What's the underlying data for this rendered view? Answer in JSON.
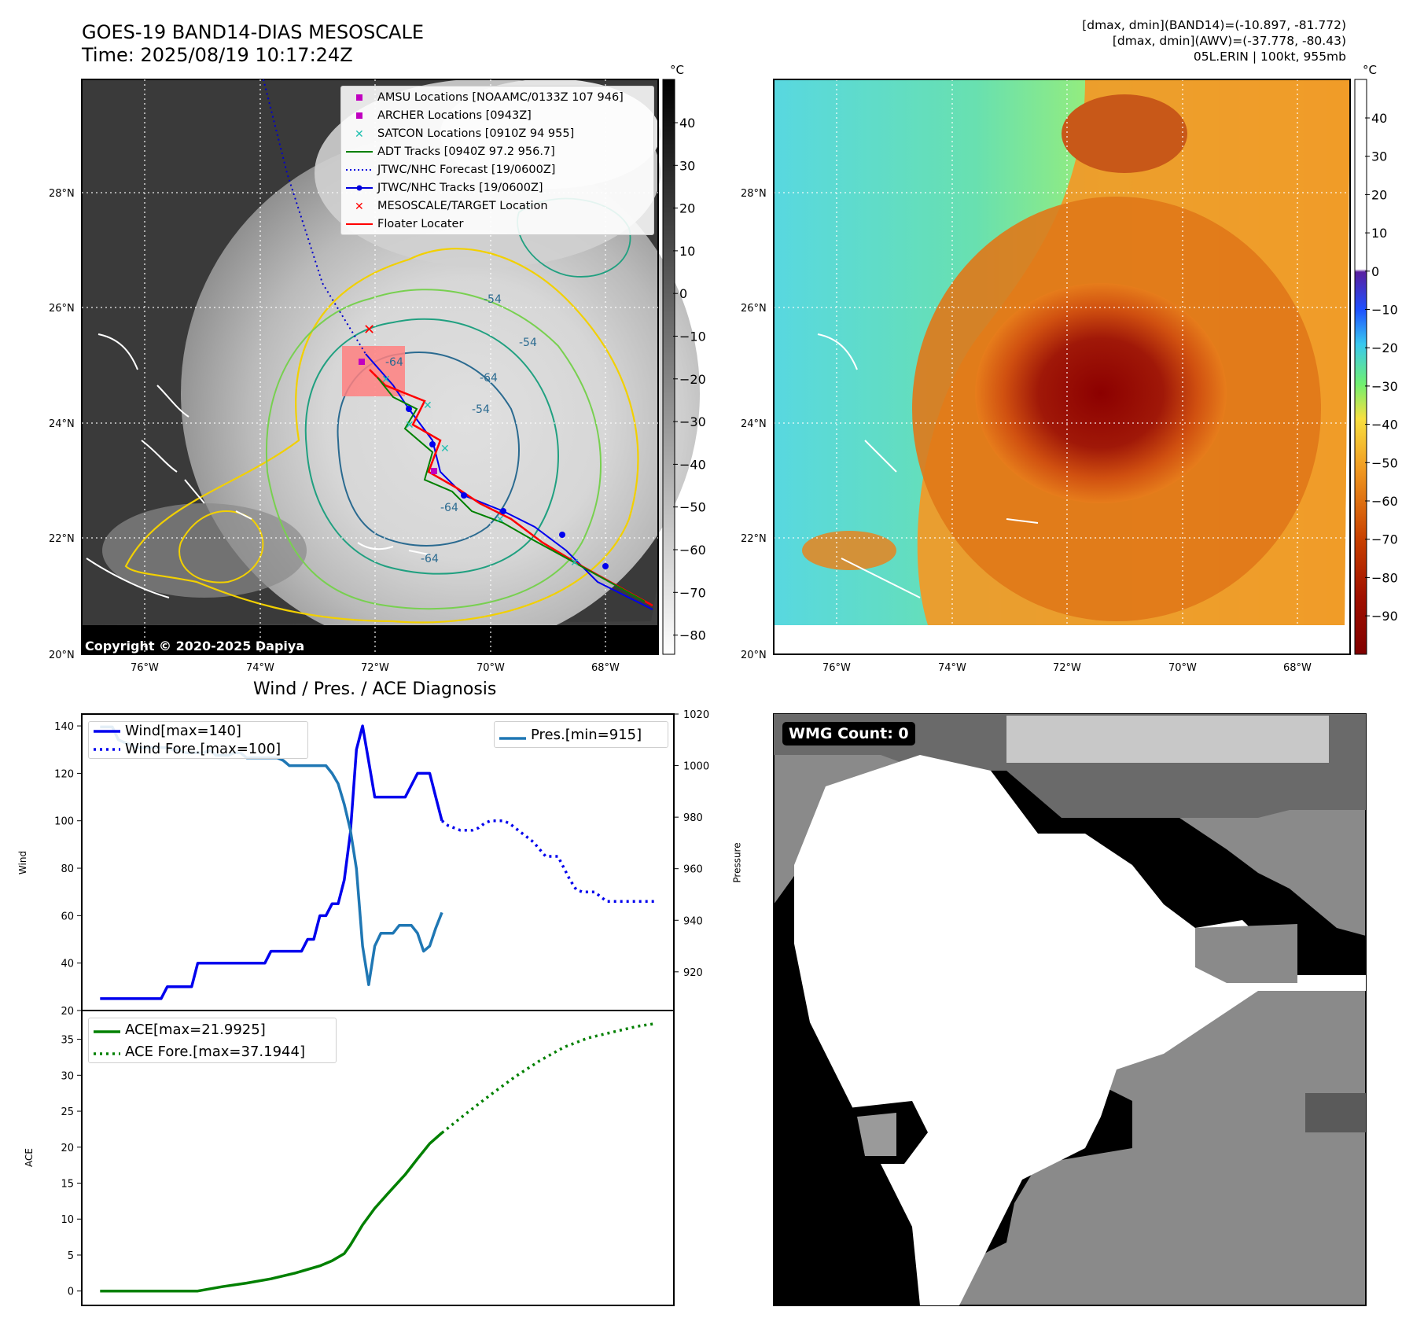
{
  "header": {
    "title_line1": "GOES-19 BAND14-DIAS MESOSCALE",
    "title_line2": "Time: 2025/08/19 10:17:24Z",
    "stats_line1": "[dmax, dmin](BAND14)=(-10.897, -81.772)",
    "stats_line2": "[dmax, dmin](AWV)=(-37.778, -80.43)",
    "stats_line3": "05L.ERIN | 100kt, 955mb"
  },
  "map_axes": {
    "lat_labels": [
      "20°N",
      "22°N",
      "24°N",
      "26°N",
      "28°N"
    ],
    "lon_labels": [
      "76°W",
      "74°W",
      "72°W",
      "70°W",
      "68°W"
    ]
  },
  "left_map": {
    "colorbar_unit": "°C",
    "colorbar_ticks": [
      "40",
      "30",
      "20",
      "10",
      "0",
      "−10",
      "−20",
      "−30",
      "−40",
      "−50",
      "−60",
      "−70",
      "−80"
    ],
    "contour_labels": [
      "-64",
      "-54",
      "-54",
      "-64",
      "-64",
      "-64",
      "-54"
    ],
    "copyright": "Copyright © 2020-2025 Dapiya",
    "legend": [
      {
        "label": "AMSU Locations [NOAAMC/0133Z 107 946]",
        "marker": "square",
        "color": "#c000c0"
      },
      {
        "label": "ARCHER Locations [0943Z]",
        "marker": "square",
        "color": "#c000c0"
      },
      {
        "label": "SATCON Locations [0910Z 94 955]",
        "marker": "x",
        "color": "#20c0b0"
      },
      {
        "label": "ADT Tracks [0940Z 97.2 956.7]",
        "marker": "line",
        "color": "#008000"
      },
      {
        "label": "JTWC/NHC Forecast [19/0600Z]",
        "marker": "dotted",
        "color": "#0000dd"
      },
      {
        "label": "JTWC/NHC Tracks [19/0600Z]",
        "marker": "line-dot",
        "color": "#0000dd"
      },
      {
        "label": "MESOSCALE/TARGET Location",
        "marker": "x",
        "color": "#ff0000"
      },
      {
        "label": "Floater Locater",
        "marker": "line",
        "color": "#ff0000"
      }
    ]
  },
  "right_map": {
    "colorbar_unit": "°C",
    "colorbar_ticks": [
      "40",
      "30",
      "20",
      "10",
      "0",
      "−10",
      "−20",
      "−30",
      "−40",
      "−50",
      "−60",
      "−70",
      "−80",
      "−90"
    ]
  },
  "chart_data": [
    {
      "type": "line",
      "title": "Wind / Pres. / ACE Diagnosis",
      "ylabel": "Wind",
      "ylabel_right": "Pressure",
      "ylim": [
        20,
        145
      ],
      "ylim_right": [
        905,
        1020
      ],
      "yticks": [
        "20",
        "40",
        "60",
        "80",
        "100",
        "120",
        "140"
      ],
      "yticks_right": [
        "920",
        "940",
        "960",
        "980",
        "1000",
        "1020"
      ],
      "legend_left": "upper-left",
      "legend_right": "upper-right",
      "series": [
        {
          "name": "Wind[max=140]",
          "axis": "left",
          "color": "#0000ee",
          "style": "solid",
          "x": [
            0,
            1,
            2,
            3,
            4,
            5,
            6,
            7,
            8,
            9,
            10,
            11,
            12,
            13,
            14,
            15,
            16,
            17,
            18,
            19,
            20,
            21,
            22,
            23,
            24,
            25,
            26,
            27,
            28,
            29,
            30,
            31,
            32,
            33,
            34,
            35,
            36,
            37,
            38,
            39,
            40,
            41,
            42,
            43,
            44,
            45,
            46,
            47,
            48,
            49,
            50,
            51,
            52,
            53,
            54,
            55,
            56,
            57,
            58,
            59,
            60
          ],
          "values": [
            25,
            25,
            25,
            25,
            25,
            25,
            25,
            25,
            25,
            25,
            25,
            30,
            30,
            30,
            30,
            30,
            40,
            40,
            40,
            40,
            40,
            40,
            40,
            40,
            40,
            40,
            40,
            40,
            45,
            45,
            45,
            45,
            45,
            45,
            50,
            50,
            60,
            60,
            65,
            65,
            75,
            95,
            130,
            140,
            125,
            110,
            110,
            110,
            110,
            110,
            110,
            115,
            120,
            120,
            120,
            110,
            100,
            null,
            null,
            null,
            null
          ]
        },
        {
          "name": "Wind Fore.[max=100]",
          "axis": "left",
          "color": "#0000ee",
          "style": "dotted",
          "x": [
            56,
            57,
            58,
            59,
            60,
            61,
            62,
            63,
            64,
            65,
            66,
            67,
            68,
            69,
            70,
            71,
            72,
            73,
            74,
            75,
            76,
            77,
            78,
            79,
            80,
            81,
            82,
            83,
            84,
            85,
            86,
            87,
            88,
            89,
            90,
            91
          ],
          "values": [
            100,
            98,
            97,
            96,
            96,
            96,
            97,
            99,
            100,
            100,
            100,
            99,
            97,
            95,
            93,
            91,
            88,
            85,
            85,
            85,
            80,
            75,
            71,
            70,
            70,
            70,
            68,
            66,
            66,
            66,
            66,
            66,
            66,
            66,
            66,
            66
          ]
        },
        {
          "name": "Pres.[min=915]",
          "axis": "right",
          "color": "#1f77b4",
          "style": "solid",
          "x": [
            0,
            1,
            2,
            3,
            4,
            5,
            6,
            7,
            8,
            9,
            10,
            11,
            12,
            13,
            14,
            15,
            16,
            17,
            18,
            19,
            20,
            21,
            22,
            23,
            24,
            25,
            26,
            27,
            28,
            29,
            30,
            31,
            32,
            33,
            34,
            35,
            36,
            37,
            38,
            39,
            40,
            41,
            42,
            43,
            44,
            45,
            46,
            47,
            48,
            49,
            50,
            51,
            52,
            53,
            54,
            55,
            56
          ],
          "values": [
            1015,
            1015,
            1015,
            1010,
            1009,
            1008,
            1007,
            1007,
            1007,
            1007,
            1007,
            1007,
            1006,
            1006,
            1005,
            1005,
            1005,
            1005,
            1006,
            1004,
            1004,
            1004,
            1005,
            1005,
            1003,
            1003,
            1003,
            1003,
            1003,
            1003,
            1002,
            1000,
            1000,
            1000,
            1000,
            1000,
            1000,
            1000,
            997,
            993,
            985,
            975,
            960,
            930,
            915,
            930,
            935,
            935,
            935,
            938,
            938,
            938,
            935,
            928,
            930,
            937,
            943
          ]
        }
      ]
    },
    {
      "type": "line",
      "ylabel": "ACE",
      "ylim": [
        -2,
        39
      ],
      "yticks": [
        "0",
        "5",
        "10",
        "15",
        "20",
        "25",
        "30",
        "35"
      ],
      "legend": "upper-left",
      "series": [
        {
          "name": "ACE[max=21.9925]",
          "color": "#008000",
          "style": "solid",
          "x": [
            0,
            4,
            8,
            12,
            16,
            20,
            24,
            28,
            32,
            36,
            38,
            40,
            41,
            43,
            45,
            47,
            50,
            52,
            54,
            56
          ],
          "values": [
            0,
            0,
            0,
            0,
            0,
            0.6,
            1.1,
            1.7,
            2.5,
            3.5,
            4.2,
            5.2,
            6.4,
            9.2,
            11.5,
            13.4,
            16.2,
            18.4,
            20.5,
            21.99
          ]
        },
        {
          "name": "ACE Fore.[max=37.1944]",
          "color": "#008000",
          "style": "dotted",
          "x": [
            56,
            60,
            64,
            68,
            72,
            76,
            80,
            84,
            88,
            91
          ],
          "values": [
            21.99,
            24.7,
            27.3,
            29.8,
            32.0,
            33.9,
            35.2,
            36.0,
            36.8,
            37.19
          ]
        }
      ]
    }
  ],
  "wmg_panel": {
    "label": "WMG Count: 0"
  }
}
